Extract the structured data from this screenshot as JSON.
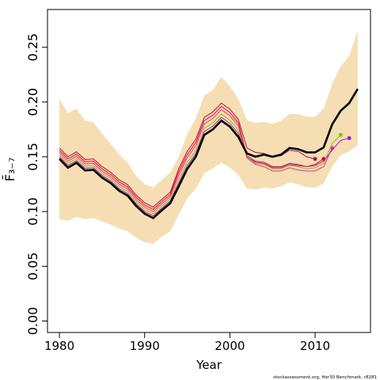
{
  "chart_data": {
    "type": "line",
    "xlabel": "Year",
    "ylabel": "F̄₃₋₇",
    "footnote": "stockassessment.org, Her30 Benchmark, r8281",
    "x": [
      1980,
      1981,
      1982,
      1983,
      1984,
      1985,
      1986,
      1987,
      1988,
      1989,
      1990,
      1991,
      1992,
      1993,
      1994,
      1995,
      1996,
      1997,
      1998,
      1999,
      2000,
      2001,
      2002,
      2003,
      2004,
      2005,
      2006,
      2007,
      2008,
      2009,
      2010,
      2011,
      2012,
      2013,
      2014,
      2015
    ],
    "values": [
      0.148,
      0.14,
      0.1445,
      0.1375,
      0.138,
      0.131,
      0.126,
      0.119,
      0.1145,
      0.105,
      0.098,
      0.094,
      0.101,
      0.1075,
      0.123,
      0.139,
      0.15,
      0.17,
      0.175,
      0.183,
      0.1775,
      0.168,
      0.153,
      0.15,
      0.152,
      0.15,
      0.152,
      0.158,
      0.157,
      0.154,
      0.154,
      0.1585,
      0.1795,
      0.192,
      0.199,
      0.212
    ],
    "color": "#000000",
    "ci_upper": [
      0.2025,
      0.19,
      0.194,
      0.183,
      0.1815,
      0.171,
      0.162,
      0.152,
      0.1445,
      0.1325,
      0.125,
      0.122,
      0.129,
      0.1355,
      0.15,
      0.171,
      0.185,
      0.206,
      0.211,
      0.223,
      0.2145,
      0.2025,
      0.1835,
      0.181,
      0.182,
      0.18,
      0.183,
      0.189,
      0.189,
      0.1865,
      0.1865,
      0.194,
      0.2165,
      0.2325,
      0.242,
      0.265
    ],
    "ci_lower": [
      0.093,
      0.0915,
      0.095,
      0.093,
      0.094,
      0.091,
      0.088,
      0.0845,
      0.082,
      0.076,
      0.072,
      0.0705,
      0.077,
      0.082,
      0.097,
      0.112,
      0.121,
      0.135,
      0.1395,
      0.1445,
      0.14,
      0.1335,
      0.121,
      0.12,
      0.122,
      0.121,
      0.123,
      0.1265,
      0.125,
      0.122,
      0.122,
      0.1255,
      0.141,
      0.1515,
      0.155,
      0.1605
    ],
    "band_color": "#f5deb3",
    "series": [
      {
        "color": "#a0153e",
        "values": [
          0.158,
          0.15,
          0.1545,
          0.1475,
          0.148,
          0.141,
          0.136,
          0.129,
          0.1245,
          0.115,
          0.108,
          0.104,
          0.111,
          0.1175,
          0.139,
          0.155,
          0.166,
          0.186,
          0.191,
          0.199,
          0.1935,
          0.184,
          0.158,
          0.154,
          0.153,
          0.15,
          0.151,
          0.156,
          0.155,
          0.15,
          0.148,
          null,
          null,
          null,
          null,
          null
        ]
      },
      {
        "color": "#e8001a",
        "values": [
          0.156,
          0.148,
          0.1525,
          0.1455,
          0.146,
          0.139,
          0.134,
          0.127,
          0.1225,
          0.113,
          0.106,
          0.102,
          0.109,
          0.1155,
          0.136,
          0.152,
          0.163,
          0.183,
          0.188,
          0.196,
          0.1905,
          0.181,
          0.15,
          0.145,
          0.144,
          0.14,
          0.14,
          0.143,
          0.142,
          0.141,
          0.143,
          0.148,
          null,
          null,
          null,
          null
        ]
      },
      {
        "color": "#ff1fa0",
        "values": [
          0.154,
          0.146,
          0.1505,
          0.1435,
          0.144,
          0.137,
          0.132,
          0.125,
          0.1205,
          0.111,
          0.104,
          0.1,
          0.107,
          0.1135,
          0.133,
          0.149,
          0.16,
          0.18,
          0.185,
          0.193,
          0.1875,
          0.178,
          0.149,
          0.143,
          0.141,
          0.137,
          0.137,
          0.14,
          0.138,
          0.137,
          0.137,
          0.141,
          0.158,
          null,
          null,
          null
        ]
      },
      {
        "color": "#7cc800",
        "values": [
          0.152,
          0.144,
          0.1485,
          0.1415,
          0.142,
          0.135,
          0.13,
          0.123,
          0.1185,
          0.109,
          0.102,
          0.098,
          0.105,
          0.1115,
          0.129,
          0.145,
          0.156,
          0.176,
          0.181,
          0.189,
          0.1835,
          0.174,
          0.15,
          0.144,
          0.143,
          0.139,
          0.139,
          0.142,
          0.141,
          0.139,
          0.14,
          0.144,
          0.162,
          0.17,
          null,
          null
        ]
      },
      {
        "color": "#a020c0",
        "values": [
          0.15,
          0.142,
          0.1465,
          0.1395,
          0.14,
          0.133,
          0.128,
          0.121,
          0.1165,
          0.107,
          0.1,
          0.096,
          0.103,
          0.1095,
          0.126,
          0.142,
          0.153,
          0.173,
          0.178,
          0.186,
          0.1805,
          0.171,
          0.151,
          0.146,
          0.145,
          0.141,
          0.141,
          0.144,
          0.143,
          0.141,
          0.142,
          0.146,
          0.156,
          0.165,
          0.167,
          null
        ]
      }
    ],
    "xlim": [
      1978.6,
      2016.5
    ],
    "ylim": [
      -0.0105,
      0.2845
    ],
    "xticks": [
      1980,
      1990,
      2000,
      2010
    ],
    "yticks": [
      {
        "value": 0,
        "label": "0.00"
      },
      {
        "value": 0.05,
        "label": "0.05"
      },
      {
        "value": 0.1,
        "label": "0.10"
      },
      {
        "value": 0.15,
        "label": "0.15"
      },
      {
        "value": 0.2,
        "label": "0.20"
      },
      {
        "value": 0.25,
        "label": "0.25"
      }
    ]
  }
}
